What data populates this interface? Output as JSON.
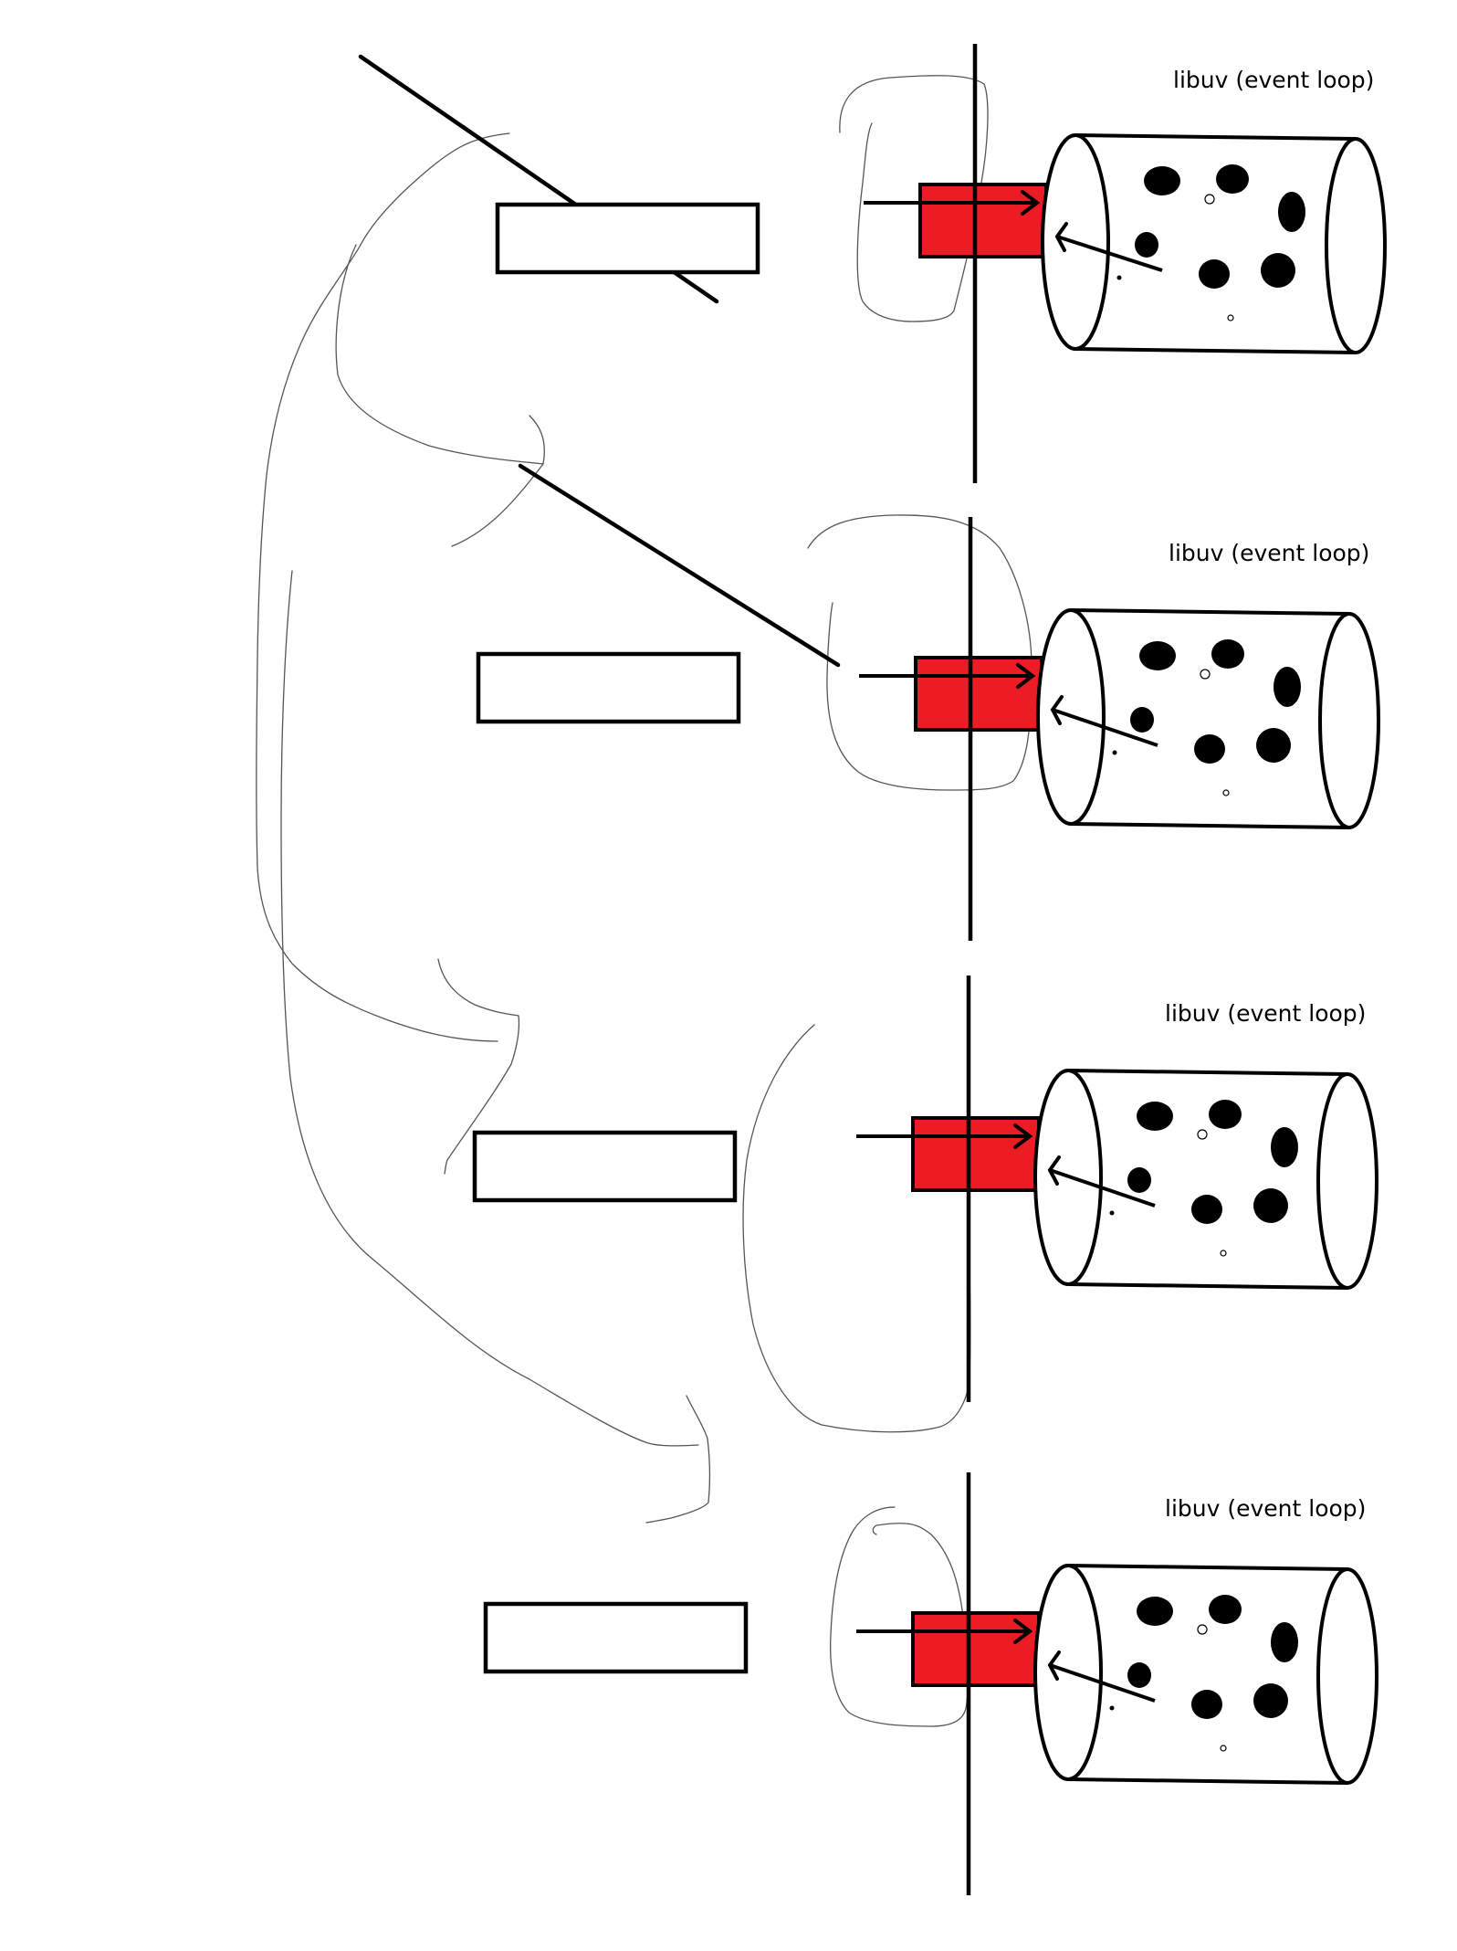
{
  "diagram": {
    "rows": [
      {
        "label": "libuv (event loop)"
      },
      {
        "label": "libuv (event loop)"
      },
      {
        "label": "libuv (event loop)"
      },
      {
        "label": "libuv (event loop)"
      }
    ]
  }
}
